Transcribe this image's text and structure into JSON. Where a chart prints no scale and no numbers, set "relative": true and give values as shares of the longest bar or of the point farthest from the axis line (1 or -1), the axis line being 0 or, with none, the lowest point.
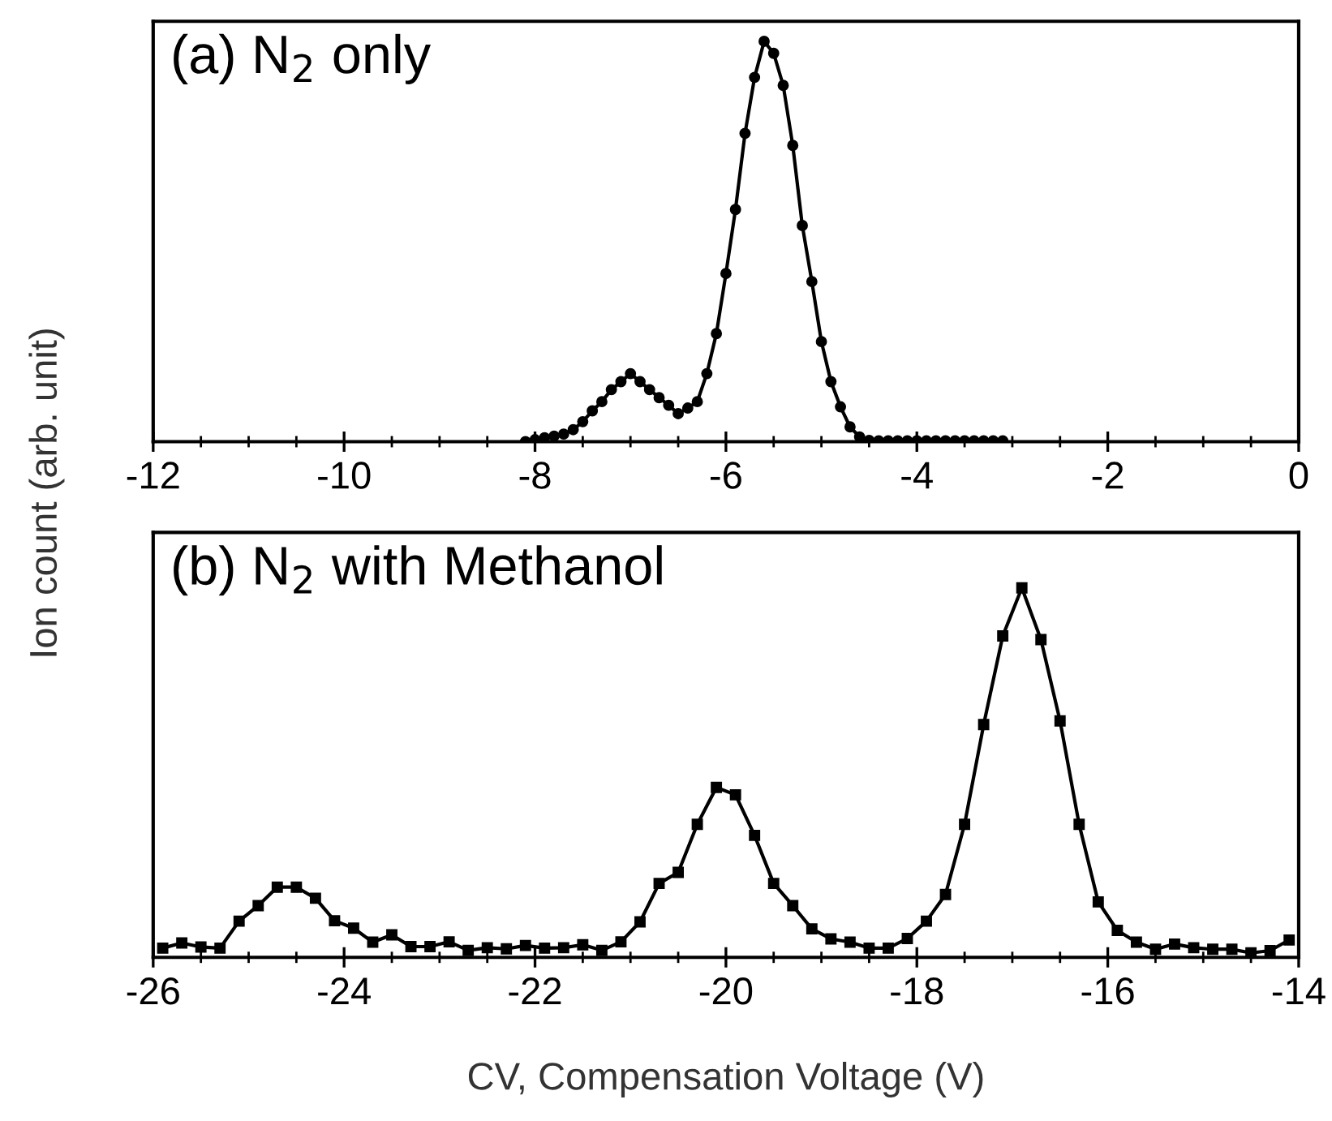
{
  "chart_data": [
    {
      "type": "line",
      "title": "(a) N$_{2}$ only",
      "ylabel": "Ion count (arb. unit)",
      "relative": true,
      "marker": "circle",
      "line_style": "solid",
      "grid": false,
      "tick_labels": "x",
      "xlim": [
        -12,
        0
      ],
      "xticks": [
        -12,
        -10,
        -8,
        -6,
        -4,
        -2,
        0
      ],
      "series": [
        {
          "color": "#000000",
          "x": [
            -8.1,
            -8.0,
            -7.9,
            -7.8,
            -7.7,
            -7.6,
            -7.5,
            -7.4,
            -7.3,
            -7.2,
            -7.1,
            -7.0,
            -6.9,
            -6.8,
            -6.7,
            -6.6,
            -6.5,
            -6.4,
            -6.3,
            -6.2,
            -6.1,
            -6.0,
            -5.9,
            -5.8,
            -5.7,
            -5.6,
            -5.5,
            -5.4,
            -5.3,
            -5.2,
            -5.1,
            -5.0,
            -4.9,
            -4.8,
            -4.7,
            -4.6,
            -4.5,
            -4.4,
            -4.3,
            -4.2,
            -4.1,
            -4.0,
            -3.9,
            -3.8,
            -3.7,
            -3.6,
            -3.5,
            -3.4,
            -3.3,
            -3.2,
            -3.1
          ],
          "values": [
            0,
            0.005,
            0.01,
            0.014,
            0.019,
            0.03,
            0.05,
            0.077,
            0.1,
            0.13,
            0.15,
            0.17,
            0.15,
            0.13,
            0.11,
            0.091,
            0.07,
            0.084,
            0.1,
            0.17,
            0.27,
            0.42,
            0.58,
            0.77,
            0.91,
            1,
            0.97,
            0.89,
            0.74,
            0.54,
            0.4,
            0.25,
            0.15,
            0.087,
            0.037,
            0.012,
            0.003,
            0.002,
            0.002,
            0.002,
            0.002,
            0.002,
            0.002,
            0.002,
            0.002,
            0.002,
            0.002,
            0.002,
            0.002,
            0.002,
            0.002
          ]
        }
      ]
    },
    {
      "type": "line",
      "title": "(b) N$_{2}$ with Methanol",
      "xlabel": "CV, Compensation Voltage (V)",
      "relative": true,
      "marker": "square",
      "line_style": "solid",
      "grid": false,
      "tick_labels": "x",
      "xlim": [
        -26,
        -14
      ],
      "xticks": [
        -26,
        -24,
        -22,
        -20,
        -18,
        -16,
        -14
      ],
      "series": [
        {
          "color": "#000000",
          "x": [
            -25.9,
            -25.7,
            -25.5,
            -25.3,
            -25.1,
            -24.9,
            -24.7,
            -24.5,
            -24.3,
            -24.1,
            -23.9,
            -23.7,
            -23.5,
            -23.3,
            -23.1,
            -22.9,
            -22.7,
            -22.5,
            -22.3,
            -22.1,
            -21.9,
            -21.7,
            -21.5,
            -21.3,
            -21.1,
            -20.9,
            -20.7,
            -20.5,
            -20.3,
            -20.1,
            -19.9,
            -19.7,
            -19.5,
            -19.3,
            -19.1,
            -18.9,
            -18.7,
            -18.5,
            -18.3,
            -18.1,
            -17.9,
            -17.7,
            -17.5,
            -17.3,
            -17.1,
            -16.9,
            -16.7,
            -16.5,
            -16.3,
            -16.1,
            -15.9,
            -15.7,
            -15.5,
            -15.3,
            -15.1,
            -14.9,
            -14.7,
            -14.5,
            -14.3,
            -14.1
          ],
          "values": [
            0.025,
            0.039,
            0.028,
            0.025,
            0.098,
            0.14,
            0.19,
            0.19,
            0.16,
            0.099,
            0.079,
            0.041,
            0.061,
            0.029,
            0.029,
            0.042,
            0.019,
            0.026,
            0.023,
            0.032,
            0.025,
            0.026,
            0.034,
            0.019,
            0.042,
            0.096,
            0.2,
            0.23,
            0.36,
            0.46,
            0.44,
            0.33,
            0.2,
            0.14,
            0.077,
            0.05,
            0.041,
            0.025,
            0.025,
            0.051,
            0.098,
            0.17,
            0.36,
            0.63,
            0.87,
            1,
            0.86,
            0.64,
            0.36,
            0.15,
            0.073,
            0.041,
            0.022,
            0.036,
            0.026,
            0.022,
            0.022,
            0.012,
            0.018,
            0.047
          ]
        }
      ]
    }
  ]
}
